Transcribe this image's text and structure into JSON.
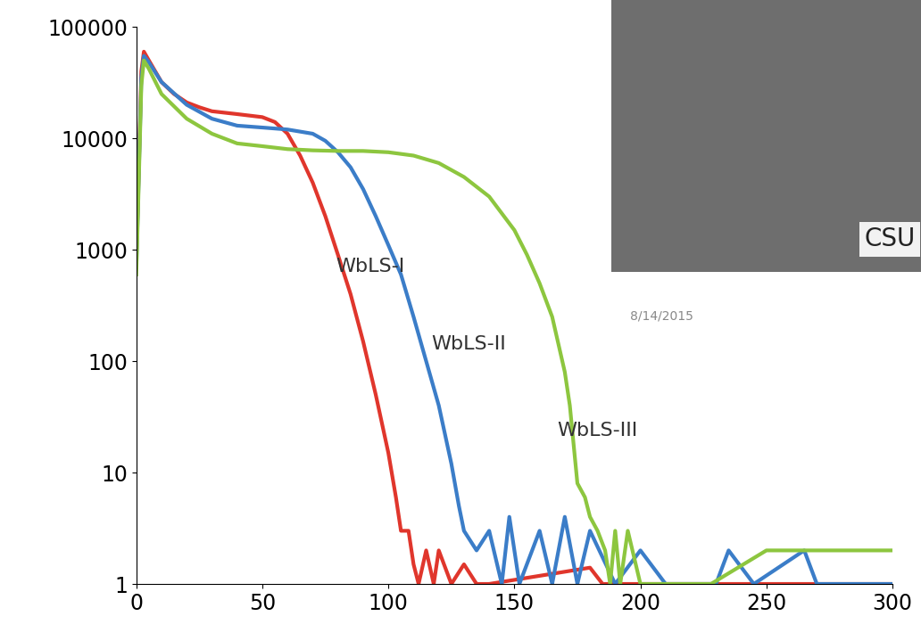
{
  "chart_data": {
    "type": "line",
    "log": "y",
    "grid": false,
    "xlim": [
      0,
      300
    ],
    "ylim": [
      1,
      100000
    ],
    "xticks": [
      0,
      50,
      100,
      150,
      200,
      250,
      300
    ],
    "yticks": [
      1,
      10,
      100,
      1000,
      10000,
      100000
    ],
    "annotations": [
      "CSU",
      "8/14/2015"
    ],
    "series": [
      {
        "name": "WbLS-I",
        "color": "#e0362c",
        "x": [
          0,
          2,
          3,
          5,
          10,
          15,
          20,
          25,
          30,
          40,
          50,
          55,
          60,
          65,
          70,
          75,
          80,
          85,
          90,
          95,
          100,
          103,
          105,
          108,
          110,
          112,
          115,
          118,
          120,
          125,
          130,
          135,
          140,
          180,
          185,
          300
        ],
        "values": [
          800,
          40000,
          60000,
          50000,
          32000,
          25000,
          21000,
          19000,
          17500,
          16500,
          15500,
          14000,
          11000,
          7000,
          4000,
          2000,
          900,
          400,
          150,
          50,
          15,
          6,
          3,
          3,
          1.5,
          1,
          2,
          1,
          2,
          1,
          1.5,
          1,
          1,
          1.4,
          1,
          1
        ]
      },
      {
        "name": "WbLS-II",
        "color": "#3b7dc8",
        "x": [
          0,
          2,
          3,
          5,
          10,
          20,
          30,
          40,
          50,
          60,
          70,
          75,
          80,
          85,
          90,
          95,
          100,
          105,
          110,
          115,
          120,
          125,
          128,
          130,
          135,
          140,
          145,
          148,
          152,
          160,
          165,
          170,
          175,
          180,
          190,
          200,
          210,
          230,
          235,
          245,
          265,
          270,
          300
        ],
        "values": [
          700,
          35000,
          55000,
          48000,
          32000,
          20000,
          15000,
          13000,
          12500,
          12000,
          11000,
          9500,
          7500,
          5500,
          3500,
          2000,
          1100,
          600,
          250,
          100,
          40,
          12,
          5,
          3,
          2,
          3,
          1,
          4,
          1,
          3,
          1,
          4,
          1,
          3,
          1,
          2,
          1,
          1,
          2,
          1,
          2,
          1,
          1
        ]
      },
      {
        "name": "WbLS-III",
        "color": "#8dc63f",
        "x": [
          0,
          2,
          3,
          5,
          10,
          20,
          30,
          40,
          50,
          60,
          70,
          80,
          90,
          100,
          110,
          120,
          130,
          140,
          150,
          155,
          160,
          165,
          170,
          172,
          175,
          178,
          180,
          183,
          186,
          188,
          190,
          192,
          195,
          200,
          228,
          250,
          300
        ],
        "values": [
          600,
          30000,
          50000,
          42000,
          25000,
          15000,
          11000,
          9000,
          8500,
          8000,
          7800,
          7700,
          7700,
          7500,
          7000,
          6000,
          4500,
          3000,
          1500,
          900,
          500,
          250,
          80,
          40,
          8,
          6,
          4,
          3,
          2,
          1,
          3,
          1,
          3,
          1,
          1,
          2,
          2
        ]
      }
    ]
  }
}
